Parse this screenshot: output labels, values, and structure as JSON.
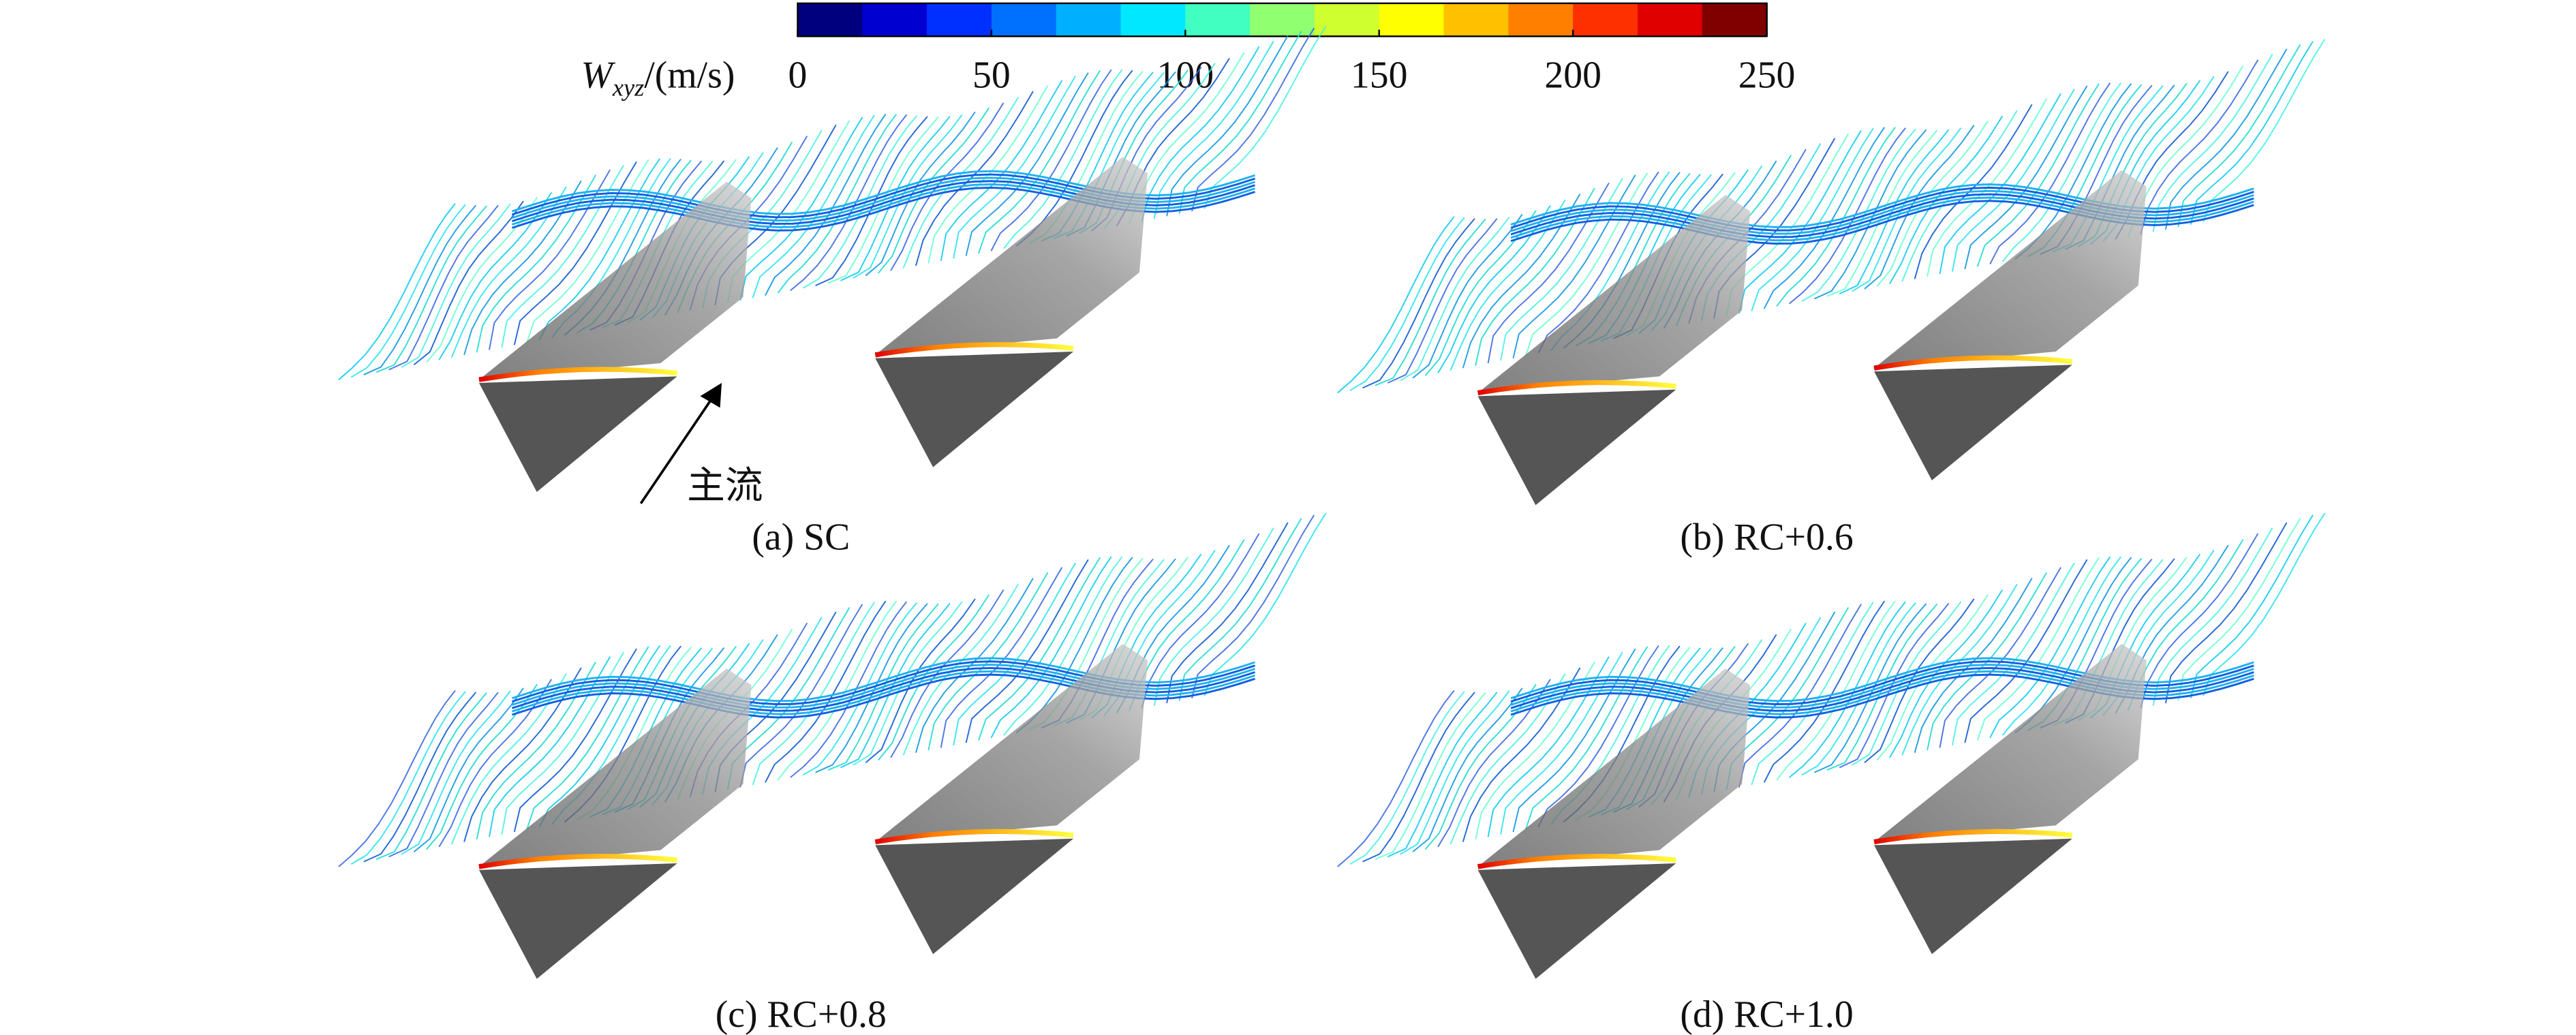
{
  "colorbar": {
    "label": {
      "symbol": "W",
      "subscript": "xyz",
      "unit": "/(m/s)"
    },
    "range": [
      0,
      250
    ],
    "ticks": [
      0,
      50,
      100,
      150,
      200,
      250
    ],
    "colors": [
      "#00007f",
      "#0000d0",
      "#0030ff",
      "#0070ff",
      "#00b0ff",
      "#00e8ff",
      "#40ffc0",
      "#90ff70",
      "#d0ff30",
      "#ffff00",
      "#ffc000",
      "#ff8000",
      "#ff3000",
      "#e00000",
      "#800000"
    ]
  },
  "panels": [
    {
      "label": "(a) SC",
      "annotation": "主流"
    },
    {
      "label": "(b) RC+0.6"
    },
    {
      "label": "(c) RC+0.8"
    },
    {
      "label": "(d) RC+1.0"
    }
  ]
}
